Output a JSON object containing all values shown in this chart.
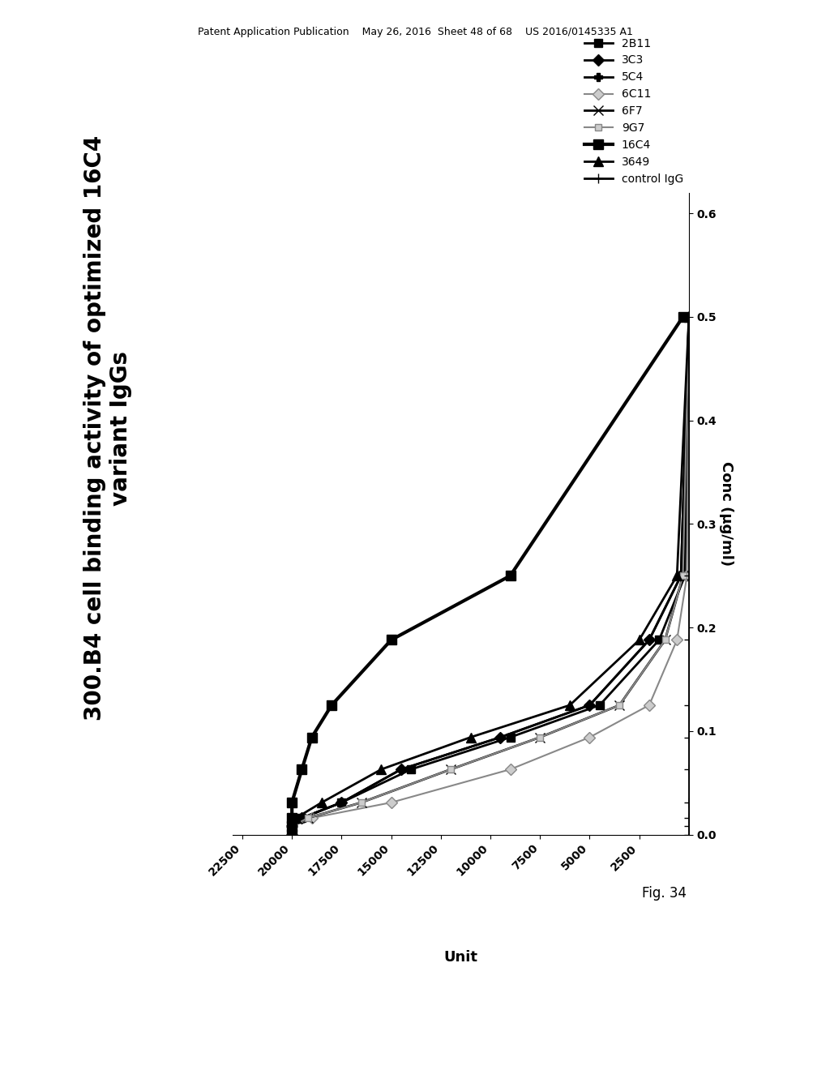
{
  "title_line1": "300.B4 cell binding activity of optimized 16C4",
  "title_line2": "variant IgGs",
  "unit_label": "Unit",
  "conc_label": "Conc (μg/ml)",
  "fig_label": "Fig. 34",
  "patent_header": "Patent Application Publication    May 26, 2016  Sheet 48 of 68    US 2016/0145335 A1",
  "series": [
    {
      "label": "2B11",
      "color": "#000000",
      "marker": "s",
      "ms": 7,
      "lw": 2.0,
      "mfc": "#000000",
      "mec": "#000000",
      "unit": [
        20000,
        20000,
        19500,
        17500,
        14000,
        9000,
        4500,
        1500,
        200,
        0
      ],
      "conc": [
        0.0,
        0.008,
        0.016,
        0.031,
        0.063,
        0.094,
        0.125,
        0.188,
        0.25,
        0.5
      ]
    },
    {
      "label": "3C3",
      "color": "#000000",
      "marker": "D",
      "ms": 7,
      "lw": 2.0,
      "mfc": "#000000",
      "mec": "#000000",
      "unit": [
        20000,
        20000,
        19500,
        17500,
        14500,
        9500,
        5000,
        2000,
        400,
        0
      ],
      "conc": [
        0.0,
        0.008,
        0.016,
        0.031,
        0.063,
        0.094,
        0.125,
        0.188,
        0.25,
        0.5
      ]
    },
    {
      "label": "5C4",
      "color": "#000000",
      "marker": "P",
      "ms": 7,
      "lw": 2.0,
      "mfc": "#000000",
      "mec": "#000000",
      "unit": [
        20000,
        20000,
        19500,
        17500,
        14500,
        9500,
        5000,
        2000,
        400,
        0
      ],
      "conc": [
        0.0,
        0.008,
        0.016,
        0.031,
        0.063,
        0.094,
        0.125,
        0.188,
        0.25,
        0.5
      ]
    },
    {
      "label": "6C11",
      "color": "#888888",
      "marker": "D",
      "ms": 7,
      "lw": 1.5,
      "mfc": "#cccccc",
      "mec": "#888888",
      "unit": [
        20000,
        20000,
        19000,
        15000,
        9000,
        5000,
        2000,
        600,
        100,
        0
      ],
      "conc": [
        0.0,
        0.008,
        0.016,
        0.031,
        0.063,
        0.094,
        0.125,
        0.188,
        0.25,
        0.5
      ]
    },
    {
      "label": "6F7",
      "color": "#000000",
      "marker": "x",
      "ms": 9,
      "lw": 2.0,
      "mfc": "#000000",
      "mec": "#000000",
      "unit": [
        20000,
        20000,
        19200,
        16500,
        12000,
        7500,
        3500,
        1200,
        300,
        0
      ],
      "conc": [
        0.0,
        0.008,
        0.016,
        0.031,
        0.063,
        0.094,
        0.125,
        0.188,
        0.25,
        0.5
      ]
    },
    {
      "label": "9G7",
      "color": "#888888",
      "marker": "s",
      "ms": 6,
      "lw": 1.5,
      "mfc": "#cccccc",
      "mec": "#888888",
      "unit": [
        20000,
        20000,
        19200,
        16500,
        12000,
        7500,
        3500,
        1200,
        300,
        0
      ],
      "conc": [
        0.0,
        0.008,
        0.016,
        0.031,
        0.063,
        0.094,
        0.125,
        0.188,
        0.25,
        0.5
      ]
    },
    {
      "label": "16C4",
      "color": "#000000",
      "marker": "s",
      "ms": 8,
      "lw": 3.0,
      "mfc": "#000000",
      "mec": "#000000",
      "unit": [
        20000,
        20000,
        20000,
        20000,
        19500,
        19000,
        18000,
        15000,
        9000,
        300
      ],
      "conc": [
        0.0,
        0.008,
        0.016,
        0.031,
        0.063,
        0.094,
        0.125,
        0.188,
        0.25,
        0.5
      ]
    },
    {
      "label": "3649",
      "color": "#000000",
      "marker": "^",
      "ms": 8,
      "lw": 2.0,
      "mfc": "#000000",
      "mec": "#000000",
      "unit": [
        20000,
        20000,
        19800,
        18500,
        15500,
        11000,
        6000,
        2500,
        600,
        0
      ],
      "conc": [
        0.0,
        0.008,
        0.016,
        0.031,
        0.063,
        0.094,
        0.125,
        0.188,
        0.25,
        0.5
      ]
    },
    {
      "label": "control IgG",
      "color": "#000000",
      "marker": "+",
      "ms": 9,
      "lw": 2.0,
      "mfc": "#000000",
      "mec": "#000000",
      "unit": [
        0,
        0,
        0,
        0,
        0,
        0,
        0,
        0,
        0,
        0
      ],
      "conc": [
        0.0,
        0.008,
        0.016,
        0.031,
        0.063,
        0.094,
        0.125,
        0.188,
        0.25,
        0.5
      ]
    }
  ],
  "background_color": "#ffffff",
  "fontsize_title": 20,
  "fontsize_axis": 13,
  "fontsize_tick": 10,
  "fontsize_legend": 10,
  "fontsize_patent": 9
}
